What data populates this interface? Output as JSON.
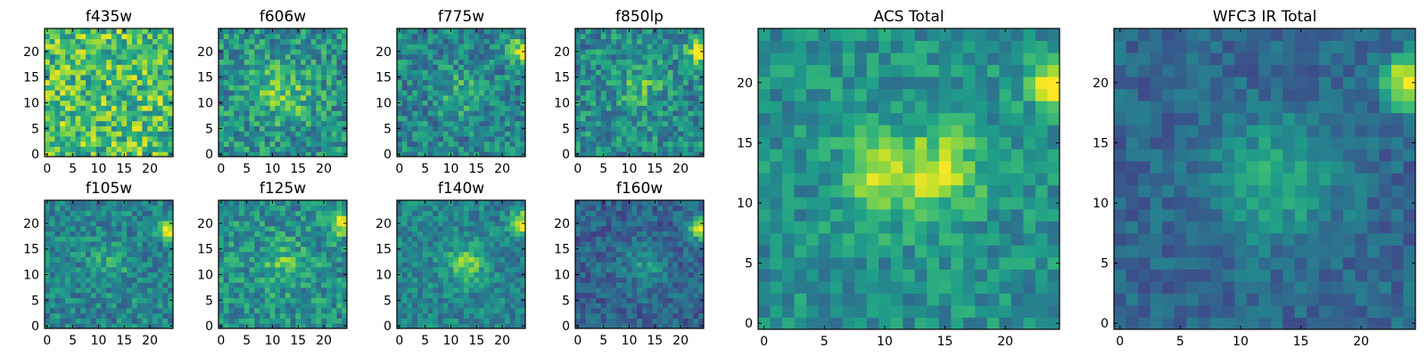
{
  "figure": {
    "colormap": "viridis",
    "pixel_grid": [
      25,
      25
    ]
  },
  "chart_data": [
    {
      "type": "heatmap",
      "title": "f435w",
      "xticks": [
        "0",
        "5",
        "10",
        "15",
        "20"
      ],
      "yticks": [
        "0",
        "5",
        "10",
        "15",
        "20"
      ],
      "xlim": [
        -0.5,
        24.5
      ],
      "ylim": [
        -0.5,
        24.5
      ],
      "features": [
        "noisy field, high mean level"
      ],
      "seed": 11
    },
    {
      "type": "heatmap",
      "title": "f606w",
      "xticks": [
        "0",
        "5",
        "10",
        "15",
        "20"
      ],
      "yticks": [
        "0",
        "5",
        "10",
        "15",
        "20"
      ],
      "xlim": [
        -0.5,
        24.5
      ],
      "ylim": [
        -0.5,
        24.5
      ],
      "features": [
        "faint source near (12,12)"
      ],
      "seed": 23
    },
    {
      "type": "heatmap",
      "title": "f775w",
      "xticks": [
        "0",
        "5",
        "10",
        "15",
        "20"
      ],
      "yticks": [
        "0",
        "5",
        "10",
        "15",
        "20"
      ],
      "xlim": [
        -0.5,
        24.5
      ],
      "ylim": [
        -0.5,
        24.5
      ],
      "features": [
        "bright source at right edge near y=20",
        "faint band near y=12"
      ],
      "seed": 37
    },
    {
      "type": "heatmap",
      "title": "f850lp",
      "xticks": [
        "0",
        "5",
        "10",
        "15",
        "20"
      ],
      "yticks": [
        "0",
        "5",
        "10",
        "15",
        "20"
      ],
      "xlim": [
        -0.5,
        24.5
      ],
      "ylim": [
        -0.5,
        24.5
      ],
      "features": [
        "bright source at right edge near y=20",
        "elongated feature near (12,13)"
      ],
      "seed": 41
    },
    {
      "type": "heatmap",
      "title": "f105w",
      "xticks": [
        "0",
        "5",
        "10",
        "15",
        "20"
      ],
      "yticks": [
        "0",
        "5",
        "10",
        "15",
        "20"
      ],
      "xlim": [
        -0.5,
        24.5
      ],
      "ylim": [
        -0.5,
        24.5
      ],
      "features": [
        "bright source at right edge near y=19"
      ],
      "seed": 53
    },
    {
      "type": "heatmap",
      "title": "f125w",
      "xticks": [
        "0",
        "5",
        "10",
        "15",
        "20"
      ],
      "yticks": [
        "0",
        "5",
        "10",
        "15",
        "20"
      ],
      "xlim": [
        -0.5,
        24.5
      ],
      "ylim": [
        -0.5,
        24.5
      ],
      "features": [
        "bright source at right edge near y=20",
        "source near (12,12)"
      ],
      "seed": 67
    },
    {
      "type": "heatmap",
      "title": "f140w",
      "xticks": [
        "0",
        "5",
        "10",
        "15",
        "20"
      ],
      "yticks": [
        "0",
        "5",
        "10",
        "15",
        "20"
      ],
      "xlim": [
        -0.5,
        24.5
      ],
      "ylim": [
        -0.5,
        24.5
      ],
      "features": [
        "bright source at right edge near y=20",
        "source near (13,12)"
      ],
      "seed": 79
    },
    {
      "type": "heatmap",
      "title": "f160w",
      "xticks": [
        "0",
        "5",
        "10",
        "15",
        "20"
      ],
      "yticks": [
        "0",
        "5",
        "10",
        "15",
        "20"
      ],
      "xlim": [
        -0.5,
        24.5
      ],
      "ylim": [
        -0.5,
        24.5
      ],
      "features": [
        "bright source at right edge near y=19",
        "darker overall background"
      ],
      "seed": 83
    },
    {
      "type": "heatmap",
      "title": "ACS Total",
      "xticks": [
        "0",
        "5",
        "10",
        "15",
        "20"
      ],
      "yticks": [
        "0",
        "5",
        "10",
        "15",
        "20"
      ],
      "xlim": [
        -0.5,
        24.5
      ],
      "ylim": [
        -0.5,
        24.5
      ],
      "features": [
        "bright source at right edge y=18-22",
        "elongated bright band y=11-14 across x=7-17"
      ],
      "seed": 97
    },
    {
      "type": "heatmap",
      "title": "WFC3 IR Total",
      "xticks": [
        "0",
        "5",
        "10",
        "15",
        "20"
      ],
      "yticks": [
        "0",
        "5",
        "10",
        "15",
        "20"
      ],
      "xlim": [
        -0.5,
        24.5
      ],
      "ylim": [
        -0.5,
        24.5
      ],
      "features": [
        "bright source at right edge y=18-22",
        "diffuse source near (13,12)",
        "dark patches at left edge y=10-11"
      ],
      "seed": 101
    }
  ]
}
